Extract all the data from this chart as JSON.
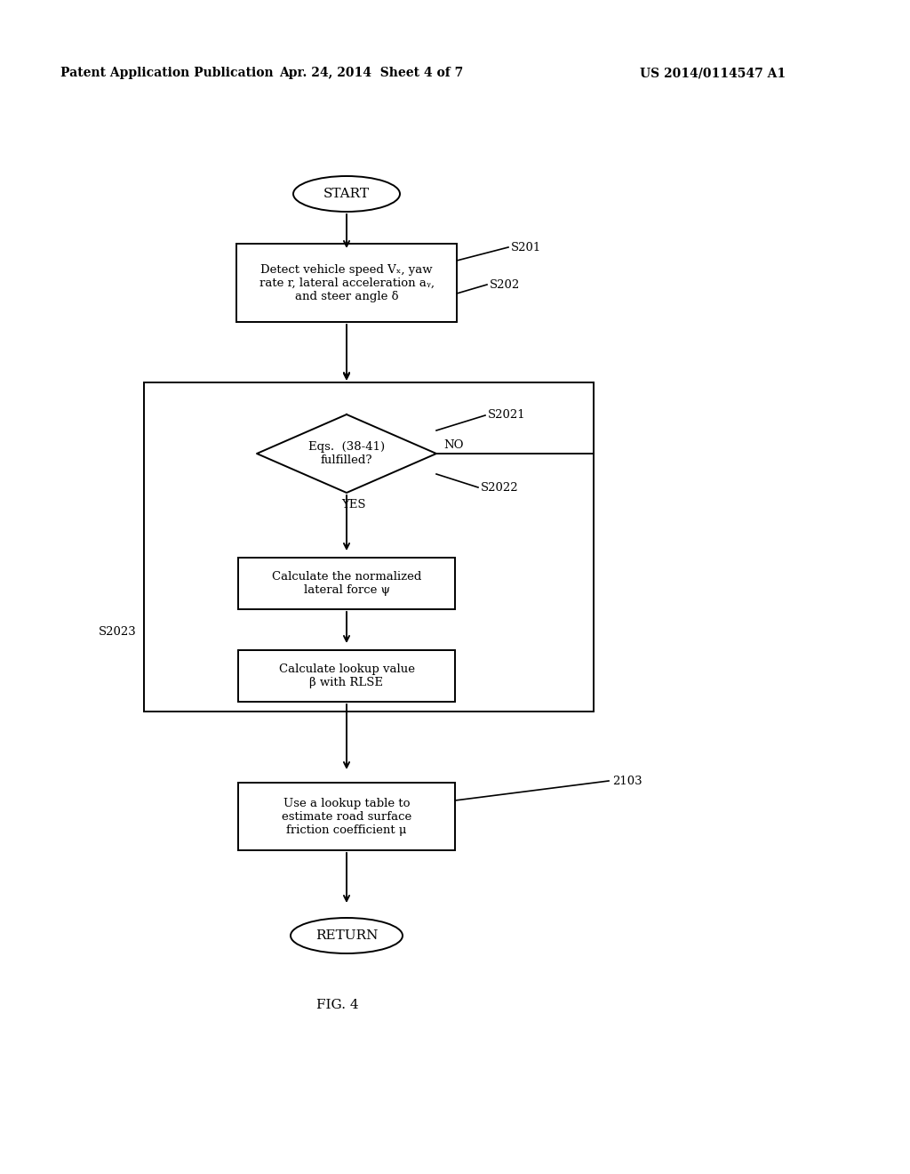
{
  "bg_color": "#ffffff",
  "header_left": "Patent Application Publication",
  "header_mid": "Apr. 24, 2014  Sheet 4 of 7",
  "header_right": "US 2014/0114547 A1",
  "fig_label": "FIG. 4",
  "start_label": "START",
  "return_label": "RETURN",
  "box1_text": "Detect vehicle speed Vₓ, yaw\nrate r, lateral acceleration aᵧ,\nand steer angle δ",
  "box2_text": "Eqs.  (38-41)\nfulfilled?",
  "box3_text": "Calculate the normalized\nlateral force ψ",
  "box4_text": "Calculate lookup value\nβ with RLSE",
  "box5_text": "Use a lookup table to\nestimate road surface\nfriction coefficient μ",
  "label_s201": "S201",
  "label_s202": "S202",
  "label_s2021": "S2021",
  "label_s2022": "S2022",
  "label_s2023": "S2023",
  "label_2103": "2103",
  "label_no": "NO",
  "label_yes": "YES",
  "lw": 1.4,
  "fontsize_main": 9.5,
  "fontsize_label": 9.5,
  "fontsize_header": 10,
  "fontsize_fig": 11
}
